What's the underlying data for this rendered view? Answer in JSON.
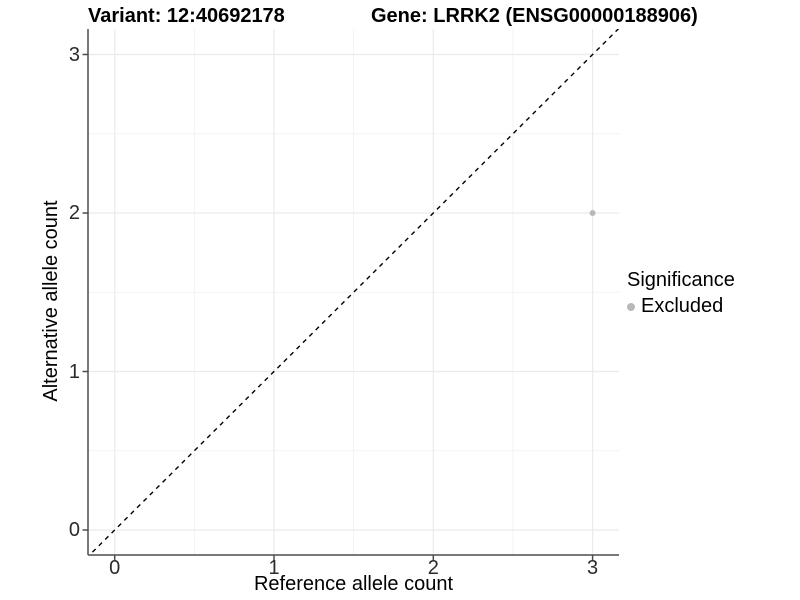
{
  "header": {
    "variant_title": "Variant: 12:40692178",
    "gene_title": "Gene: LRRK2 (ENSG00000188906)"
  },
  "axes": {
    "x": {
      "label": "Reference allele count",
      "ticks": [
        "0",
        "1",
        "2",
        "3"
      ]
    },
    "y": {
      "label": "Alternative allele count",
      "ticks": [
        "0",
        "1",
        "2",
        "3"
      ]
    }
  },
  "legend": {
    "title": "Significance",
    "items": [
      {
        "label": "Excluded",
        "color": "#b9b9b9"
      }
    ]
  },
  "chart_data": {
    "type": "scatter",
    "title": "Variant: 12:40692178   Gene: LRRK2 (ENSG00000188906)",
    "xlabel": "Reference allele count",
    "ylabel": "Alternative allele count",
    "xlim": [
      -0.17,
      3.17
    ],
    "ylim": [
      -0.17,
      3.17
    ],
    "x_major_ticks": [
      0,
      1,
      2,
      3
    ],
    "y_major_ticks": [
      0,
      1,
      2,
      3
    ],
    "x_minor_ticks": [
      0.5,
      1.5,
      2.5
    ],
    "y_minor_ticks": [
      0.5,
      1.5,
      2.5
    ],
    "grid": "major+minor",
    "legend_position": "right",
    "series": [
      {
        "name": "Excluded",
        "color": "#b9b9b9",
        "points": [
          {
            "x": 3,
            "y": 2
          }
        ]
      }
    ],
    "reference_line": {
      "kind": "identity",
      "slope": 1,
      "intercept": 0,
      "style": "dashed",
      "color": "#000000"
    },
    "colors": {
      "grid_major": "#ebebeb",
      "grid_minor": "#f3f3f3",
      "axis": "#4d4d4d",
      "tick": "#4d4d4d",
      "point": "#b9b9b9",
      "background": "#ffffff"
    }
  }
}
